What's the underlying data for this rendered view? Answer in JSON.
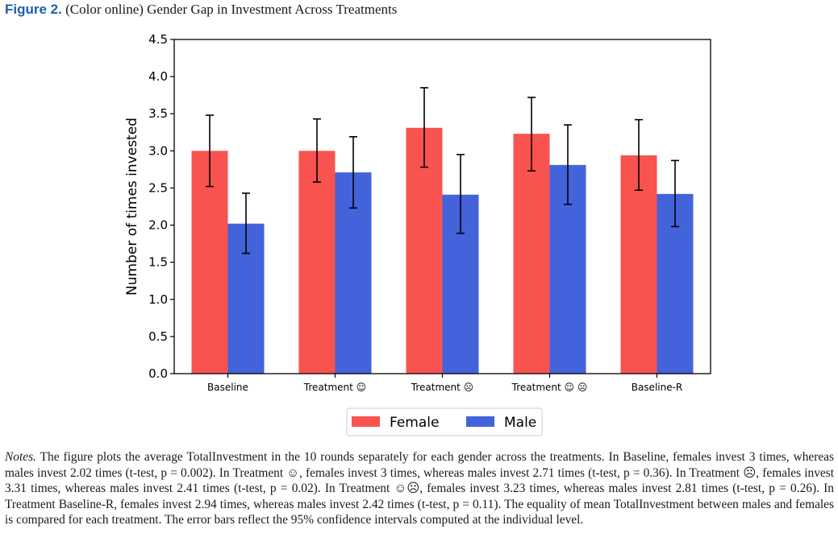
{
  "figure": {
    "label": "Figure 2.",
    "title": "(Color online) Gender Gap in Investment Across Treatments"
  },
  "chart_data": {
    "type": "bar",
    "ylabel": "Number of times invested",
    "xlabel": "",
    "ylim": [
      0,
      4.5
    ],
    "yticks": [
      "0.0",
      "0.5",
      "1.0",
      "1.5",
      "2.0",
      "2.5",
      "3.0",
      "3.5",
      "4.0",
      "4.5"
    ],
    "categories": [
      "Baseline",
      "Treatment ☺",
      "Treatment ☹",
      "Treatment ☺ ☹",
      "Baseline-R"
    ],
    "series": [
      {
        "name": "Female",
        "color": "#f8534f",
        "values": [
          3.0,
          3.0,
          3.31,
          3.23,
          2.94
        ],
        "ci_low": [
          2.52,
          2.58,
          2.78,
          2.73,
          2.47
        ],
        "ci_high": [
          3.48,
          3.43,
          3.85,
          3.72,
          3.42
        ]
      },
      {
        "name": "Male",
        "color": "#4363db",
        "values": [
          2.02,
          2.71,
          2.41,
          2.81,
          2.42
        ],
        "ci_low": [
          1.62,
          2.23,
          1.89,
          2.28,
          1.98
        ],
        "ci_high": [
          2.43,
          3.19,
          2.95,
          3.35,
          2.87
        ]
      }
    ],
    "legend_position": "bottom-center",
    "grid": false
  },
  "notes": {
    "label": "Notes.",
    "text": "The figure plots the average TotalInvestment in the 10 rounds separately for each gender across the treatments. In Baseline, females invest 3 times, whereas males invest 2.02 times (t-test, p = 0.002). In Treatment ☺, females invest 3 times, whereas males invest 2.71 times (t-test, p = 0.36). In Treatment ☹, females invest 3.31 times, whereas males invest 2.41 times (t-test, p = 0.02). In Treatment ☺☹, females invest 3.23 times, whereas males invest 2.81 times (t-test, p = 0.26). In Treatment Baseline-R, females invest 2.94 times, whereas males invest 2.42 times (t-test, p = 0.11). The equality of mean TotalInvestment between males and females is compared for each treatment. The error bars reflect the 95% confidence intervals computed at the individual level."
  }
}
